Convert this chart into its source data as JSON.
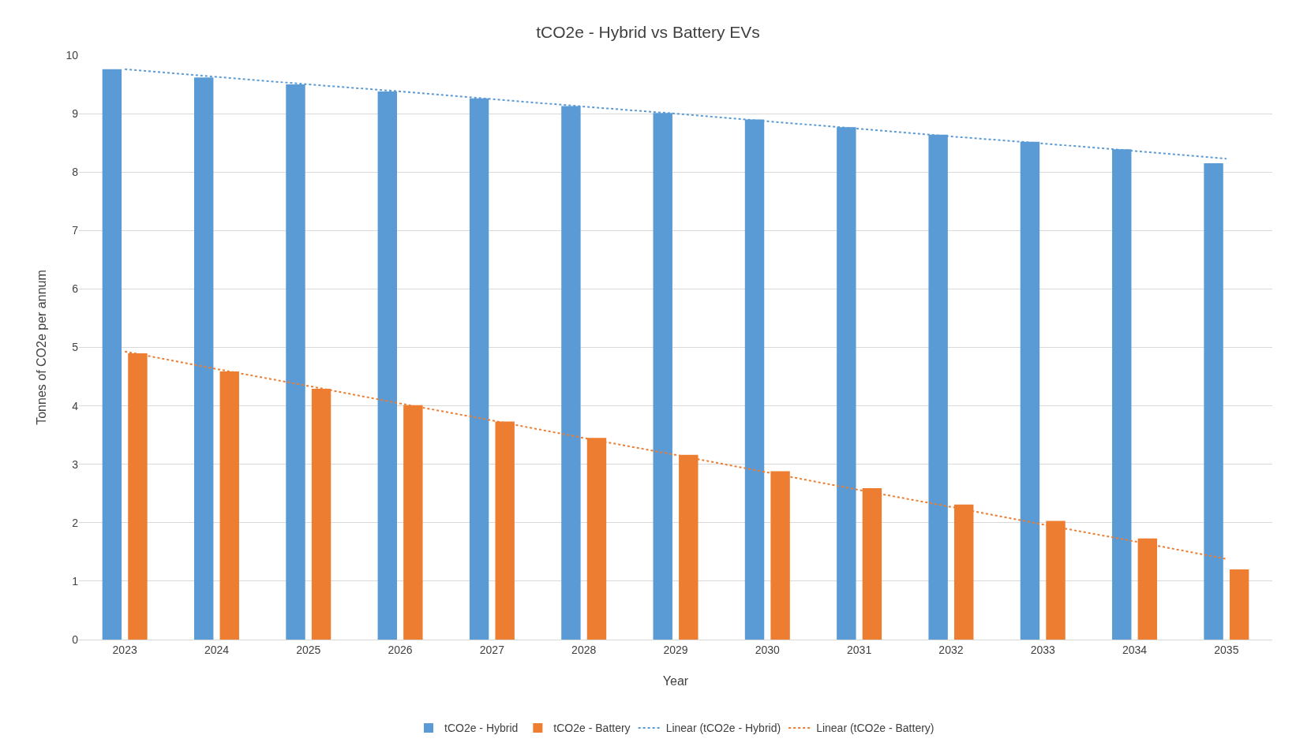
{
  "chart_data": {
    "type": "bar",
    "title": "tCO2e - Hybrid vs Battery EVs",
    "xlabel": "Year",
    "ylabel": "Tonnes of CO2e per annum",
    "categories": [
      "2023",
      "2024",
      "2025",
      "2026",
      "2027",
      "2028",
      "2029",
      "2030",
      "2031",
      "2032",
      "2033",
      "2034",
      "2035"
    ],
    "series": [
      {
        "name": "tCO2e - Hybrid",
        "color": "#5b9bd5",
        "values": [
          9.76,
          9.62,
          9.5,
          9.38,
          9.26,
          9.13,
          9.01,
          8.9,
          8.77,
          8.64,
          8.52,
          8.39,
          8.15
        ]
      },
      {
        "name": "tCO2e - Battery",
        "color": "#ed7d31",
        "values": [
          4.9,
          4.59,
          4.29,
          4.01,
          3.73,
          3.45,
          3.16,
          2.88,
          2.59,
          2.31,
          2.03,
          1.73,
          1.2
        ]
      },
      {
        "name": "Linear (tCO2e - Hybrid)",
        "type": "line",
        "line_style": "dotted",
        "color": "#5b9bd5",
        "values": [
          9.76,
          9.63,
          9.5,
          9.38,
          9.25,
          9.12,
          9.0,
          8.87,
          8.74,
          8.61,
          8.49,
          8.36,
          8.23
        ]
      },
      {
        "name": "Linear (tCO2e - Battery)",
        "type": "line",
        "line_style": "dotted",
        "color": "#ed7d31",
        "values": [
          4.93,
          4.63,
          4.34,
          4.04,
          3.75,
          3.45,
          3.16,
          2.86,
          2.56,
          2.27,
          1.97,
          1.68,
          1.38
        ]
      }
    ],
    "ylim": [
      0,
      10
    ],
    "yticks": [
      0,
      1,
      2,
      3,
      4,
      5,
      6,
      7,
      8,
      9,
      10
    ],
    "grid": "y",
    "legend": "bottom",
    "marker": "none"
  }
}
